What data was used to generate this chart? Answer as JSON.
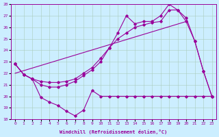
{
  "xlabel": "Windchill (Refroidissement éolien,°C)",
  "line_color": "#990099",
  "bg_color": "#cceeff",
  "grid_color": "#aaccbb",
  "xlim": [
    -0.5,
    23.5
  ],
  "ylim": [
    18,
    28
  ],
  "yticks": [
    18,
    19,
    20,
    21,
    22,
    23,
    24,
    25,
    26,
    27,
    28
  ],
  "xticks": [
    0,
    1,
    2,
    3,
    4,
    5,
    6,
    7,
    8,
    9,
    10,
    11,
    12,
    13,
    14,
    15,
    16,
    17,
    18,
    19,
    20,
    21,
    22,
    23
  ],
  "line1_x": [
    0,
    1,
    2,
    3,
    4,
    5,
    6,
    7,
    8,
    9,
    10,
    11,
    12,
    13,
    14,
    15,
    16,
    17,
    18,
    19,
    20,
    21,
    22,
    23
  ],
  "line1_y": [
    22.8,
    21.9,
    21.5,
    19.9,
    19.5,
    19.2,
    18.7,
    18.3,
    18.8,
    20.5,
    20.0,
    20.0,
    20.0,
    20.0,
    20.0,
    20.0,
    20.0,
    20.0,
    20.0,
    20.0,
    20.0,
    20.0,
    20.0,
    20.0
  ],
  "line2_x": [
    0,
    1,
    2,
    3,
    4,
    5,
    6,
    7,
    8,
    9,
    10,
    11,
    12,
    13,
    14,
    15,
    16,
    17,
    18,
    19,
    20,
    21,
    22,
    23
  ],
  "line2_y": [
    22.8,
    21.9,
    21.5,
    21.3,
    21.2,
    21.2,
    21.3,
    21.5,
    22.0,
    22.5,
    23.3,
    24.2,
    25.0,
    25.5,
    26.0,
    26.2,
    26.4,
    26.5,
    27.5,
    27.5,
    26.8,
    24.8,
    22.2,
    20.0
  ],
  "line3_x": [
    0,
    1,
    2,
    3,
    4,
    5,
    6,
    7,
    8,
    9,
    10,
    11,
    12,
    13,
    14,
    15,
    16,
    17,
    18,
    19,
    20,
    21,
    22,
    23
  ],
  "line3_y": [
    22.8,
    21.9,
    21.5,
    21.0,
    20.8,
    20.8,
    21.0,
    21.3,
    21.8,
    22.3,
    23.0,
    24.2,
    25.5,
    27.0,
    26.3,
    26.5,
    26.5,
    27.0,
    28.0,
    27.5,
    26.5,
    24.8,
    22.2,
    20.0
  ],
  "trend_x": [
    0,
    20
  ],
  "trend_y": [
    22.0,
    26.5
  ]
}
